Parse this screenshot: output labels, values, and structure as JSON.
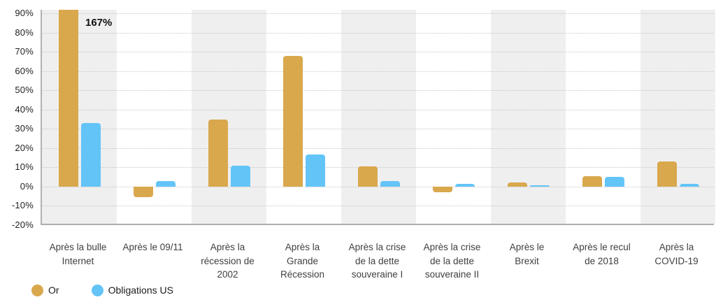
{
  "chart_data": {
    "type": "bar",
    "title": "",
    "xlabel": "",
    "ylabel": "",
    "ylim": [
      -20,
      90
    ],
    "ytick_values": [
      90,
      80,
      70,
      60,
      50,
      40,
      30,
      20,
      10,
      0,
      -10,
      -20
    ],
    "ytick_labels": [
      "90%",
      "80%",
      "70%",
      "60%",
      "50%",
      "40%",
      "30%",
      "20%",
      "10%",
      "0%",
      "-10%",
      "-20%"
    ],
    "grid": "horizontal-dotted",
    "band_shading": "alternating-gray-white",
    "legend_position": "bottom-left",
    "categories": [
      {
        "lines": [
          "Après la bulle",
          "Internet"
        ]
      },
      {
        "lines": [
          "Après le 09/11"
        ]
      },
      {
        "lines": [
          "Après la",
          "récession de",
          "2002"
        ]
      },
      {
        "lines": [
          "Après la",
          "Grande",
          "Récession"
        ]
      },
      {
        "lines": [
          "Après la crise",
          "de la dette",
          "souveraine I"
        ]
      },
      {
        "lines": [
          "Après la crise",
          "de la dette",
          "souveraine II"
        ]
      },
      {
        "lines": [
          "Après le",
          "Brexit"
        ]
      },
      {
        "lines": [
          "Après le recul",
          "de 2018"
        ]
      },
      {
        "lines": [
          "Après la",
          "COVID-19"
        ]
      }
    ],
    "series": [
      {
        "name": "Or",
        "color": "#D9A84D",
        "values": [
          167,
          -5.3,
          35,
          68,
          10.5,
          -3,
          2.2,
          5.4,
          13
        ]
      },
      {
        "name": "Obligations US",
        "color": "#63C4F7",
        "values": [
          33,
          2.8,
          11,
          16.5,
          3,
          1.4,
          0.8,
          5,
          1.4
        ]
      }
    ],
    "annotation": {
      "text": "167%",
      "note": "value of clipped first Or bar"
    }
  },
  "colors": {
    "stripe_gray": "#EFEFEF",
    "gridline": "#C7C7C7",
    "axis_line": "#AFAFAF",
    "background": "#FFFFFF"
  }
}
